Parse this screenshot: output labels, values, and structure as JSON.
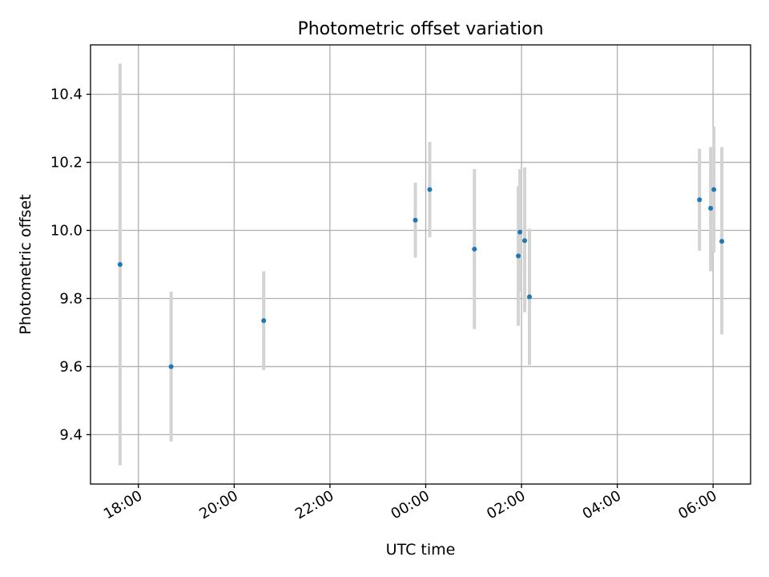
{
  "chart_data": {
    "type": "scatter",
    "title": "Photometric offset variation",
    "xlabel": "UTC time",
    "ylabel": "Photometric offset",
    "x_tick_labels": [
      "18:00",
      "20:00",
      "22:00",
      "00:00",
      "02:00",
      "04:00",
      "06:00"
    ],
    "x_ticks": [
      "18:00",
      "20:00",
      "22:00",
      "24:00",
      "26:00",
      "28:00",
      "30:00"
    ],
    "xlim": [
      "17:00",
      "30:47"
    ],
    "y_tick_labels": [
      "9.4",
      "9.6",
      "9.8",
      "10.0",
      "10.2",
      "10.4"
    ],
    "y_ticks": [
      9.4,
      9.6,
      9.8,
      10.0,
      10.2,
      10.4
    ],
    "ylim": [
      9.255,
      10.545
    ],
    "grid": true,
    "points": [
      {
        "x": "17:37",
        "y": 9.9,
        "yerr_low": 9.31,
        "yerr_high": 10.49
      },
      {
        "x": "18:41",
        "y": 9.6,
        "yerr_low": 9.38,
        "yerr_high": 9.82
      },
      {
        "x": "20:37",
        "y": 9.735,
        "yerr_low": 9.59,
        "yerr_high": 9.88
      },
      {
        "x": "23:47",
        "y": 10.03,
        "yerr_low": 9.92,
        "yerr_high": 10.14
      },
      {
        "x": "24:05",
        "y": 10.12,
        "yerr_low": 9.98,
        "yerr_high": 10.26
      },
      {
        "x": "25:01",
        "y": 9.945,
        "yerr_low": 9.71,
        "yerr_high": 10.18
      },
      {
        "x": "25:56",
        "y": 9.925,
        "yerr_low": 9.72,
        "yerr_high": 10.13
      },
      {
        "x": "25:58",
        "y": 9.995,
        "yerr_low": 9.82,
        "yerr_high": 10.18
      },
      {
        "x": "26:04",
        "y": 9.97,
        "yerr_low": 9.76,
        "yerr_high": 10.185
      },
      {
        "x": "26:10",
        "y": 9.805,
        "yerr_low": 9.605,
        "yerr_high": 10.005
      },
      {
        "x": "29:43",
        "y": 10.09,
        "yerr_low": 9.94,
        "yerr_high": 10.24
      },
      {
        "x": "29:57",
        "y": 10.065,
        "yerr_low": 9.88,
        "yerr_high": 10.245
      },
      {
        "x": "30:01",
        "y": 10.12,
        "yerr_low": 9.935,
        "yerr_high": 10.305
      },
      {
        "x": "30:11",
        "y": 9.968,
        "yerr_low": 9.695,
        "yerr_high": 10.245
      }
    ],
    "colors": {
      "point": "#1f77b4",
      "errorbar": "#d3d3d3",
      "grid": "#b0b0b0",
      "axes": "#000000"
    }
  }
}
